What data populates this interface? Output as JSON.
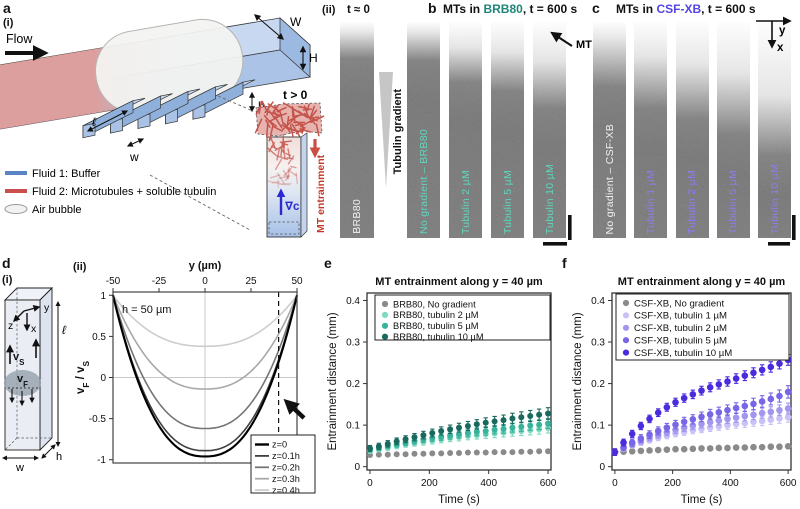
{
  "figure": {
    "panels": {
      "a": {
        "label": "a",
        "sub_i": "(i)",
        "flow": "Flow",
        "dim_W": "W",
        "dim_H": "H",
        "dim_l": "ℓ",
        "dim_w": "w",
        "dim_h": "h",
        "legend": [
          {
            "swatch": "line",
            "color": "#5b84c4",
            "label": "Fluid 1: Buffer"
          },
          {
            "swatch": "line",
            "color": "#c9504a",
            "label": "Fluid 2: Microtubules + soluble tubulin"
          },
          {
            "swatch": "ellipse",
            "color": "#f2f2f0",
            "label": "Air bubble"
          }
        ],
        "inset": {
          "time": "t > 0",
          "gradient": "∇c",
          "gradient_color": "#2a2ad0",
          "entrainment": "MT entrainment",
          "entrainment_color": "#c0392b"
        }
      },
      "aii": {
        "label": "(ii)",
        "time": "t ≈ 0",
        "wedge_label": "Tubulin gradient",
        "strip": {
          "label": "BRB80",
          "label_color": "#f0f0f0",
          "bright": 5,
          "fade": 17
        }
      },
      "b": {
        "label": "b",
        "title": {
          "pre": "MTs in ",
          "accent": "BRB80",
          "post": ", t = 600 s",
          "accent_color": "#1e8578"
        },
        "mt_annotation": "MT",
        "strips": [
          {
            "label": "No gradient – BRB80",
            "label_color": "#5fd6bc",
            "bright": 5,
            "fade": 18
          },
          {
            "label": "Tubulin 2 µM",
            "label_color": "#5fd6bc",
            "bright": 12,
            "fade": 28
          },
          {
            "label": "Tubulin 5 µM",
            "label_color": "#5fd6bc",
            "bright": 14,
            "fade": 32
          },
          {
            "label": "Tubulin 10 µM",
            "label_color": "#5fd6bc",
            "bright": 18,
            "fade": 40
          }
        ]
      },
      "c": {
        "label": "c",
        "title": {
          "pre": "MTs in ",
          "accent": "CSF-XB",
          "post": ", t = 600 s",
          "accent_color": "#5344e3"
        },
        "axis_marker": {
          "y": "y",
          "x": "x"
        },
        "strips": [
          {
            "label": "No gradient – CSF-XB",
            "label_color": "#f0f0f0",
            "bright": 8,
            "fade": 30
          },
          {
            "label": "Tubulin 1 µM",
            "label_color": "#8d7cf2",
            "bright": 16,
            "fade": 40
          },
          {
            "label": "Tubulin 2 µM",
            "label_color": "#8d7cf2",
            "bright": 20,
            "fade": 45
          },
          {
            "label": "Tubulin 5 µM",
            "label_color": "#8d7cf2",
            "bright": 24,
            "fade": 52
          },
          {
            "label": "Tubulin 10 µM",
            "label_color": "#8d7cf2",
            "bright": 34,
            "fade": 62
          }
        ]
      },
      "d": {
        "label": "d",
        "sub_i": "(i)",
        "sub_ii": "(ii)",
        "ax_y": "y",
        "ax_z": "z",
        "ax_x": "x",
        "vs_parts": [
          {
            "t": "v"
          },
          {
            "t": "S",
            "sub": true
          }
        ],
        "vf_parts": [
          {
            "t": "v"
          },
          {
            "t": "F",
            "sub": true
          }
        ],
        "dim_l": "ℓ",
        "dim_w": "w",
        "dim_h": "h"
      },
      "e": {
        "label": "e"
      },
      "f": {
        "label": "f"
      }
    }
  },
  "chart_data": [
    {
      "id": "d_ii",
      "type": "line",
      "xlabel": "y (µm)",
      "ylabel": "vF / vS",
      "ylabel_parts": [
        {
          "t": "v"
        },
        {
          "t": "F",
          "sub": true
        },
        {
          "t": " / v"
        },
        {
          "t": "S",
          "sub": true
        }
      ],
      "annotation": "h = 50 µm",
      "xlim": [
        -50,
        50
      ],
      "ylim": [
        -1,
        1
      ],
      "x_ticks": [
        "-50",
        "-25",
        "0",
        "25",
        "50"
      ],
      "y_ticks": [
        "1",
        "0.5",
        "0",
        "-0.5",
        "-1"
      ],
      "x_axis_position": "top",
      "gridlines_at_zero": true,
      "dashed_line_x": 40,
      "legend_position": "bottom-right",
      "profile_exponent": 2.4,
      "series": [
        {
          "name": "z=0",
          "v_min": -0.96,
          "color": "#000000",
          "width": 2.1
        },
        {
          "name": "z=0.1h",
          "v_min": -0.89,
          "color": "#3f3f3f",
          "width": 1.6
        },
        {
          "name": "z=0.2h",
          "v_min": -0.62,
          "color": "#757575",
          "width": 1.6
        },
        {
          "name": "z=0.3h",
          "v_min": -0.14,
          "color": "#a8a8a8",
          "width": 1.6
        },
        {
          "name": "z=0.4h",
          "v_min": 0.38,
          "color": "#cdcdcd",
          "width": 1.6
        }
      ]
    },
    {
      "id": "e",
      "type": "scatter",
      "title": "MT entrainment along y = 40 µm",
      "xlabel": "Time (s)",
      "ylabel": "Entrainment distance (mm)",
      "x_ticks": [
        "0",
        "200",
        "400",
        "600"
      ],
      "y_ticks": [
        "0",
        "0.1",
        "0.2",
        "0.3",
        "0.4"
      ],
      "xlim": [
        0,
        600
      ],
      "ylim": [
        0,
        0.4
      ],
      "legend_position": "top-left",
      "x": [
        0,
        30,
        60,
        90,
        120,
        150,
        180,
        210,
        240,
        270,
        300,
        330,
        360,
        390,
        420,
        450,
        480,
        510,
        540,
        570,
        600
      ],
      "series": [
        {
          "name": "BRB80, No gradient",
          "color": "#8a8a8a",
          "values": [
            0.028,
            0.029,
            0.029,
            0.03,
            0.03,
            0.031,
            0.031,
            0.032,
            0.032,
            0.033,
            0.033,
            0.034,
            0.034,
            0.034,
            0.035,
            0.035,
            0.035,
            0.036,
            0.036,
            0.037,
            0.037
          ],
          "err": [
            0.002,
            0.003
          ]
        },
        {
          "name": "BRB80, tubulin 2 µM",
          "color": "#7fd8c0",
          "values": [
            0.038,
            0.042,
            0.046,
            0.05,
            0.054,
            0.057,
            0.06,
            0.063,
            0.066,
            0.069,
            0.071,
            0.074,
            0.076,
            0.078,
            0.08,
            0.082,
            0.084,
            0.086,
            0.088,
            0.09,
            0.093
          ],
          "err": [
            0.006,
            0.012
          ]
        },
        {
          "name": "BRB80, tubulin 5 µM",
          "color": "#36b39a",
          "values": [
            0.041,
            0.045,
            0.05,
            0.054,
            0.058,
            0.062,
            0.066,
            0.069,
            0.072,
            0.075,
            0.078,
            0.081,
            0.084,
            0.086,
            0.089,
            0.091,
            0.094,
            0.096,
            0.099,
            0.101,
            0.104
          ],
          "err": [
            0.006,
            0.012
          ]
        },
        {
          "name": "BRB80, tubulin 10 µM",
          "color": "#19695e",
          "values": [
            0.044,
            0.049,
            0.055,
            0.061,
            0.066,
            0.071,
            0.076,
            0.081,
            0.086,
            0.09,
            0.094,
            0.098,
            0.102,
            0.106,
            0.109,
            0.112,
            0.116,
            0.119,
            0.122,
            0.125,
            0.128
          ],
          "err": [
            0.007,
            0.014
          ]
        }
      ]
    },
    {
      "id": "f",
      "type": "scatter",
      "title": "MT entrainment along y = 40 µm",
      "xlabel": "Time (s)",
      "ylabel": "Entrainment distance (mm)",
      "x_ticks": [
        "0",
        "200",
        "400",
        "600"
      ],
      "y_ticks": [
        "0",
        "0.1",
        "0.2",
        "0.3",
        "0.4"
      ],
      "xlim": [
        0,
        600
      ],
      "ylim": [
        0,
        0.4
      ],
      "legend_position": "top-left",
      "x": [
        0,
        30,
        60,
        90,
        120,
        150,
        180,
        210,
        240,
        270,
        300,
        330,
        360,
        390,
        420,
        450,
        480,
        510,
        540,
        570,
        600
      ],
      "series": [
        {
          "name": "CSF-XB, No gradient",
          "color": "#8a8a8a",
          "values": [
            0.035,
            0.036,
            0.037,
            0.038,
            0.039,
            0.04,
            0.041,
            0.042,
            0.042,
            0.043,
            0.044,
            0.044,
            0.045,
            0.045,
            0.046,
            0.046,
            0.047,
            0.047,
            0.048,
            0.048,
            0.049
          ],
          "err": [
            0.002,
            0.003
          ]
        },
        {
          "name": "CSF-XB, tubulin 1 µM",
          "color": "#c9c2f6",
          "values": [
            0.035,
            0.043,
            0.051,
            0.058,
            0.064,
            0.07,
            0.075,
            0.08,
            0.084,
            0.088,
            0.091,
            0.094,
            0.097,
            0.1,
            0.103,
            0.105,
            0.108,
            0.11,
            0.113,
            0.116,
            0.119
          ],
          "err": [
            0.006,
            0.012
          ]
        },
        {
          "name": "CSF-XB, tubulin 2 µM",
          "color": "#a396ef",
          "values": [
            0.035,
            0.045,
            0.054,
            0.062,
            0.07,
            0.077,
            0.083,
            0.089,
            0.094,
            0.099,
            0.103,
            0.107,
            0.111,
            0.115,
            0.118,
            0.122,
            0.125,
            0.129,
            0.132,
            0.136,
            0.14
          ],
          "err": [
            0.007,
            0.013
          ]
        },
        {
          "name": "CSF-XB, tubulin 5 µM",
          "color": "#7766e6",
          "values": [
            0.035,
            0.047,
            0.058,
            0.068,
            0.077,
            0.086,
            0.094,
            0.101,
            0.108,
            0.114,
            0.12,
            0.126,
            0.131,
            0.136,
            0.141,
            0.146,
            0.151,
            0.157,
            0.163,
            0.17,
            0.18
          ],
          "err": [
            0.008,
            0.015
          ]
        },
        {
          "name": "CSF-XB, tubulin 10 µM",
          "color": "#4b2bdd",
          "values": [
            0.035,
            0.058,
            0.079,
            0.098,
            0.115,
            0.13,
            0.143,
            0.155,
            0.165,
            0.174,
            0.183,
            0.191,
            0.198,
            0.205,
            0.212,
            0.219,
            0.226,
            0.233,
            0.24,
            0.248,
            0.257
          ],
          "err": [
            0.008,
            0.013
          ]
        }
      ]
    }
  ]
}
